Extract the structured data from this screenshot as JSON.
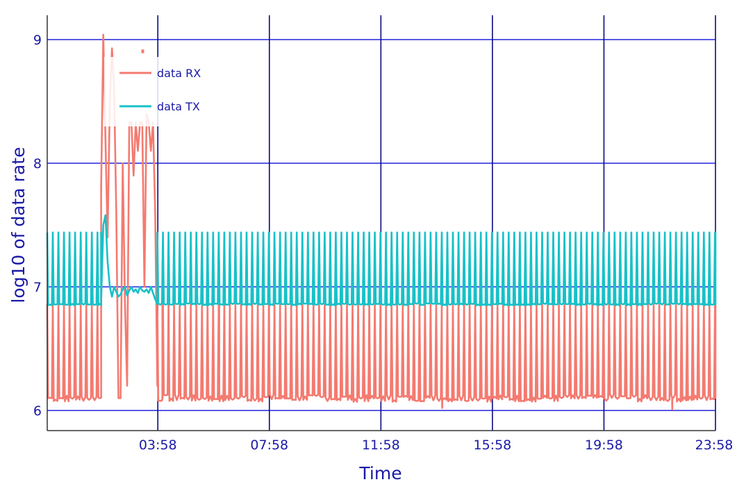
{
  "chart_data": {
    "type": "line",
    "title": "",
    "xlabel": "Time",
    "ylabel": "log10 of data rate",
    "x_unit": "HH:MM (one day)",
    "x_ticks": [
      "03:58",
      "07:58",
      "11:58",
      "15:58",
      "19:58",
      "23:58"
    ],
    "x_tick_minutes": [
      238,
      478,
      718,
      958,
      1198,
      1438
    ],
    "xlim_minutes": [
      0,
      1438
    ],
    "y_ticks": [
      6,
      7,
      8,
      9
    ],
    "ylim": [
      5.85,
      9.2
    ],
    "grid": true,
    "legend_position": "top-left",
    "series": [
      {
        "name": "data RX",
        "color": "#f47a70",
        "pattern": {
          "start_minute": 0,
          "end_minute": 1438,
          "period_minutes": 12,
          "high": 6.86,
          "low": 6.1
        },
        "features": [
          {
            "minute": 118,
            "value": 9.04
          },
          {
            "minute": 124,
            "value": 8.93
          },
          {
            "minute": 205,
            "value": 8.9
          },
          {
            "minute": 248,
            "value": 7.2
          },
          {
            "minute": 370,
            "value": 7.2
          },
          {
            "minute": 850,
            "value": 6.02
          },
          {
            "minute": 1345,
            "value": 6.01
          }
        ],
        "burst": {
          "start_minute": 116,
          "end_minute": 237,
          "values": [
            7.8,
            9.04,
            8.2,
            7.4,
            8.5,
            8.93,
            8.6,
            7.6,
            6.1,
            6.1,
            8.0,
            6.9,
            6.2,
            8.33,
            8.33,
            7.9,
            8.33,
            8.1,
            8.33,
            8.33,
            7.0,
            8.4,
            8.33,
            8.1,
            8.33,
            7.6,
            6.2
          ]
        }
      },
      {
        "name": "data TX",
        "color": "#17c1c8",
        "pattern": {
          "start_minute": 0,
          "end_minute": 1438,
          "period_minutes": 12,
          "high": 7.44,
          "low": 6.86
        },
        "burst": {
          "start_minute": 116,
          "end_minute": 237,
          "values": [
            6.88,
            7.5,
            7.58,
            7.2,
            7.0,
            6.92,
            7.0,
            6.96,
            6.92,
            6.94,
            6.98,
            7.0,
            6.93,
            6.97,
            7.0,
            6.96,
            6.98,
            6.95,
            7.0,
            6.97,
            6.96,
            6.98,
            6.95,
            7.0,
            6.95,
            6.9,
            6.86
          ]
        }
      }
    ]
  }
}
